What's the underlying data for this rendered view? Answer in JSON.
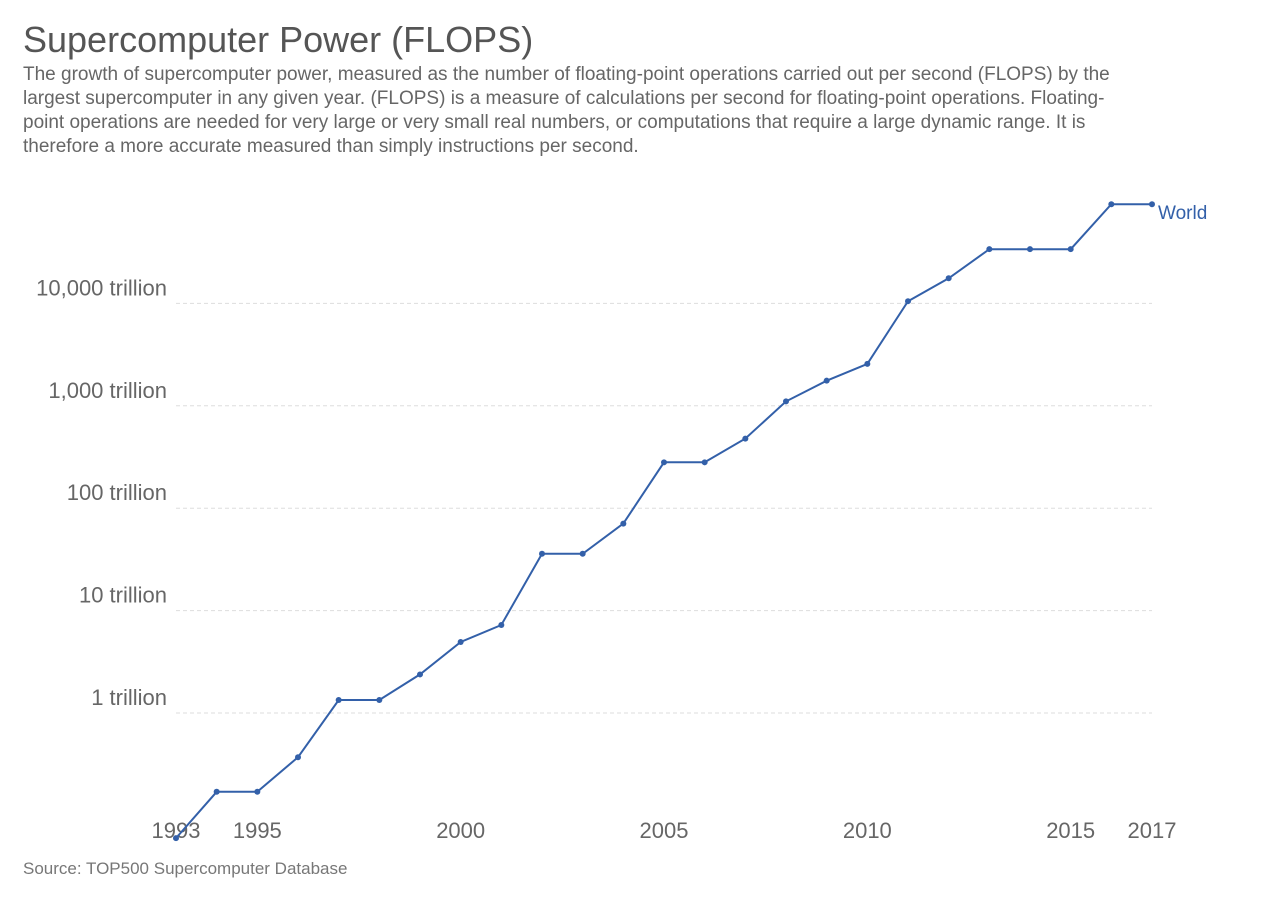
{
  "chart_data": {
    "type": "line",
    "title": "Supercomputer Power (FLOPS)",
    "subtitle": "The growth of supercomputer power, measured as the number of floating-point operations carried out per second (FLOPS) by the largest supercomputer in any given year. (FLOPS) is a measure of calculations per second for floating-point operations. Floating-point operations are needed for very large or very small real numbers, or computations that require a large dynamic range. It is therefore a more accurate measured than simply instructions per second.",
    "source": "Source: TOP500 Supercomputer Database",
    "y_scale": "log",
    "ylim_trillion": [
      0.07,
      200000
    ],
    "xlim": [
      1993,
      2017
    ],
    "y_ticks": [
      {
        "value": 1,
        "label": "1 trillion"
      },
      {
        "value": 10,
        "label": "10 trillion"
      },
      {
        "value": 100,
        "label": "100 trillion"
      },
      {
        "value": 1000,
        "label": "1,000 trillion"
      },
      {
        "value": 10000,
        "label": "10,000 trillion"
      }
    ],
    "x_ticks": [
      {
        "value": 1993,
        "label": "1993"
      },
      {
        "value": 1995,
        "label": "1995"
      },
      {
        "value": 2000,
        "label": "2000"
      },
      {
        "value": 2005,
        "label": "2005"
      },
      {
        "value": 2010,
        "label": "2010"
      },
      {
        "value": 2015,
        "label": "2015"
      },
      {
        "value": 2017,
        "label": "2017"
      }
    ],
    "grid": true,
    "series": [
      {
        "name": "World",
        "color": "#3360a9",
        "x": [
          1993,
          1994,
          1995,
          1996,
          1997,
          1998,
          1999,
          2000,
          2001,
          2002,
          2003,
          2004,
          2005,
          2006,
          2007,
          2008,
          2009,
          2010,
          2011,
          2012,
          2013,
          2014,
          2015,
          2016,
          2017
        ],
        "values": [
          0.06,
          0.17,
          0.17,
          0.37,
          1.34,
          1.34,
          2.38,
          4.94,
          7.23,
          35.9,
          35.9,
          70.7,
          280.6,
          280.6,
          478.2,
          1105,
          1759,
          2566,
          10510,
          17590,
          33860,
          33860,
          33860,
          93010,
          93010
        ]
      }
    ]
  }
}
